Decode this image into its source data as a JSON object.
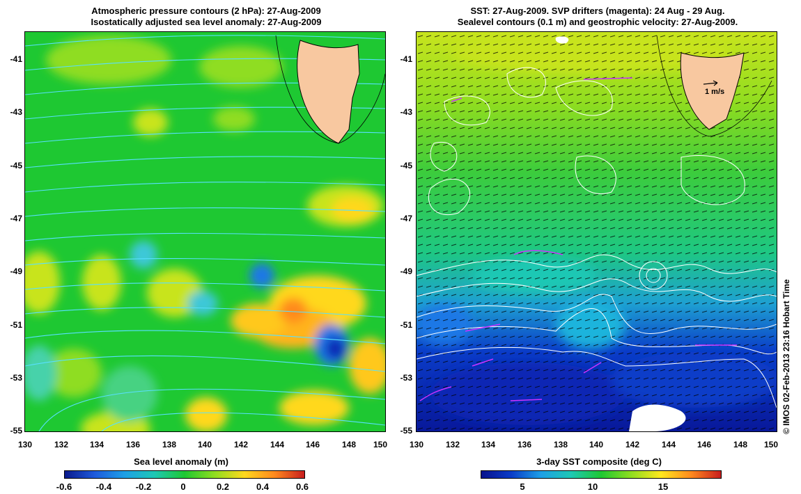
{
  "left_panel": {
    "title_line1": "Atmospheric pressure contours (2 hPa): 27-Aug-2009",
    "title_line2": "Isostatically adjusted sea level anomaly: 27-Aug-2009",
    "colorbar_label": "Sea level anomaly (m)",
    "colorbar_ticks": [
      "-0.6",
      "-0.4",
      "-0.2",
      "0",
      "0.2",
      "0.4",
      "0.6"
    ],
    "colorbar_range": [
      -0.6,
      0.6
    ]
  },
  "right_panel": {
    "title_line1": "SST: 27-Aug-2009. SVP drifters (magenta): 24 Aug - 29 Aug.",
    "title_line2": "Sealevel contours (0.1 m) and geostrophic velocity: 27-Aug-2009.",
    "colorbar_label": "3-day SST composite (deg C)",
    "colorbar_ticks": [
      "5",
      "10",
      "15"
    ],
    "colorbar_range": [
      2,
      19
    ],
    "velocity_scale_label": "1 m/s"
  },
  "axes": {
    "lat_ticks": [
      "-41",
      "-43",
      "-45",
      "-47",
      "-49",
      "-51",
      "-53",
      "-55"
    ],
    "lon_ticks": [
      "130",
      "132",
      "134",
      "136",
      "138",
      "140",
      "142",
      "144",
      "146",
      "148",
      "150"
    ],
    "lon_range": [
      130,
      150
    ],
    "lat_range": [
      -55,
      -40
    ]
  },
  "credit": "© IMOS 02-Feb-2013 23:16 Hobart Time",
  "colors": {
    "land": "#f8c8a0",
    "contour_left": "#58e0ff",
    "contour_right": "#ffffff",
    "drifter": "#cc33ff"
  }
}
